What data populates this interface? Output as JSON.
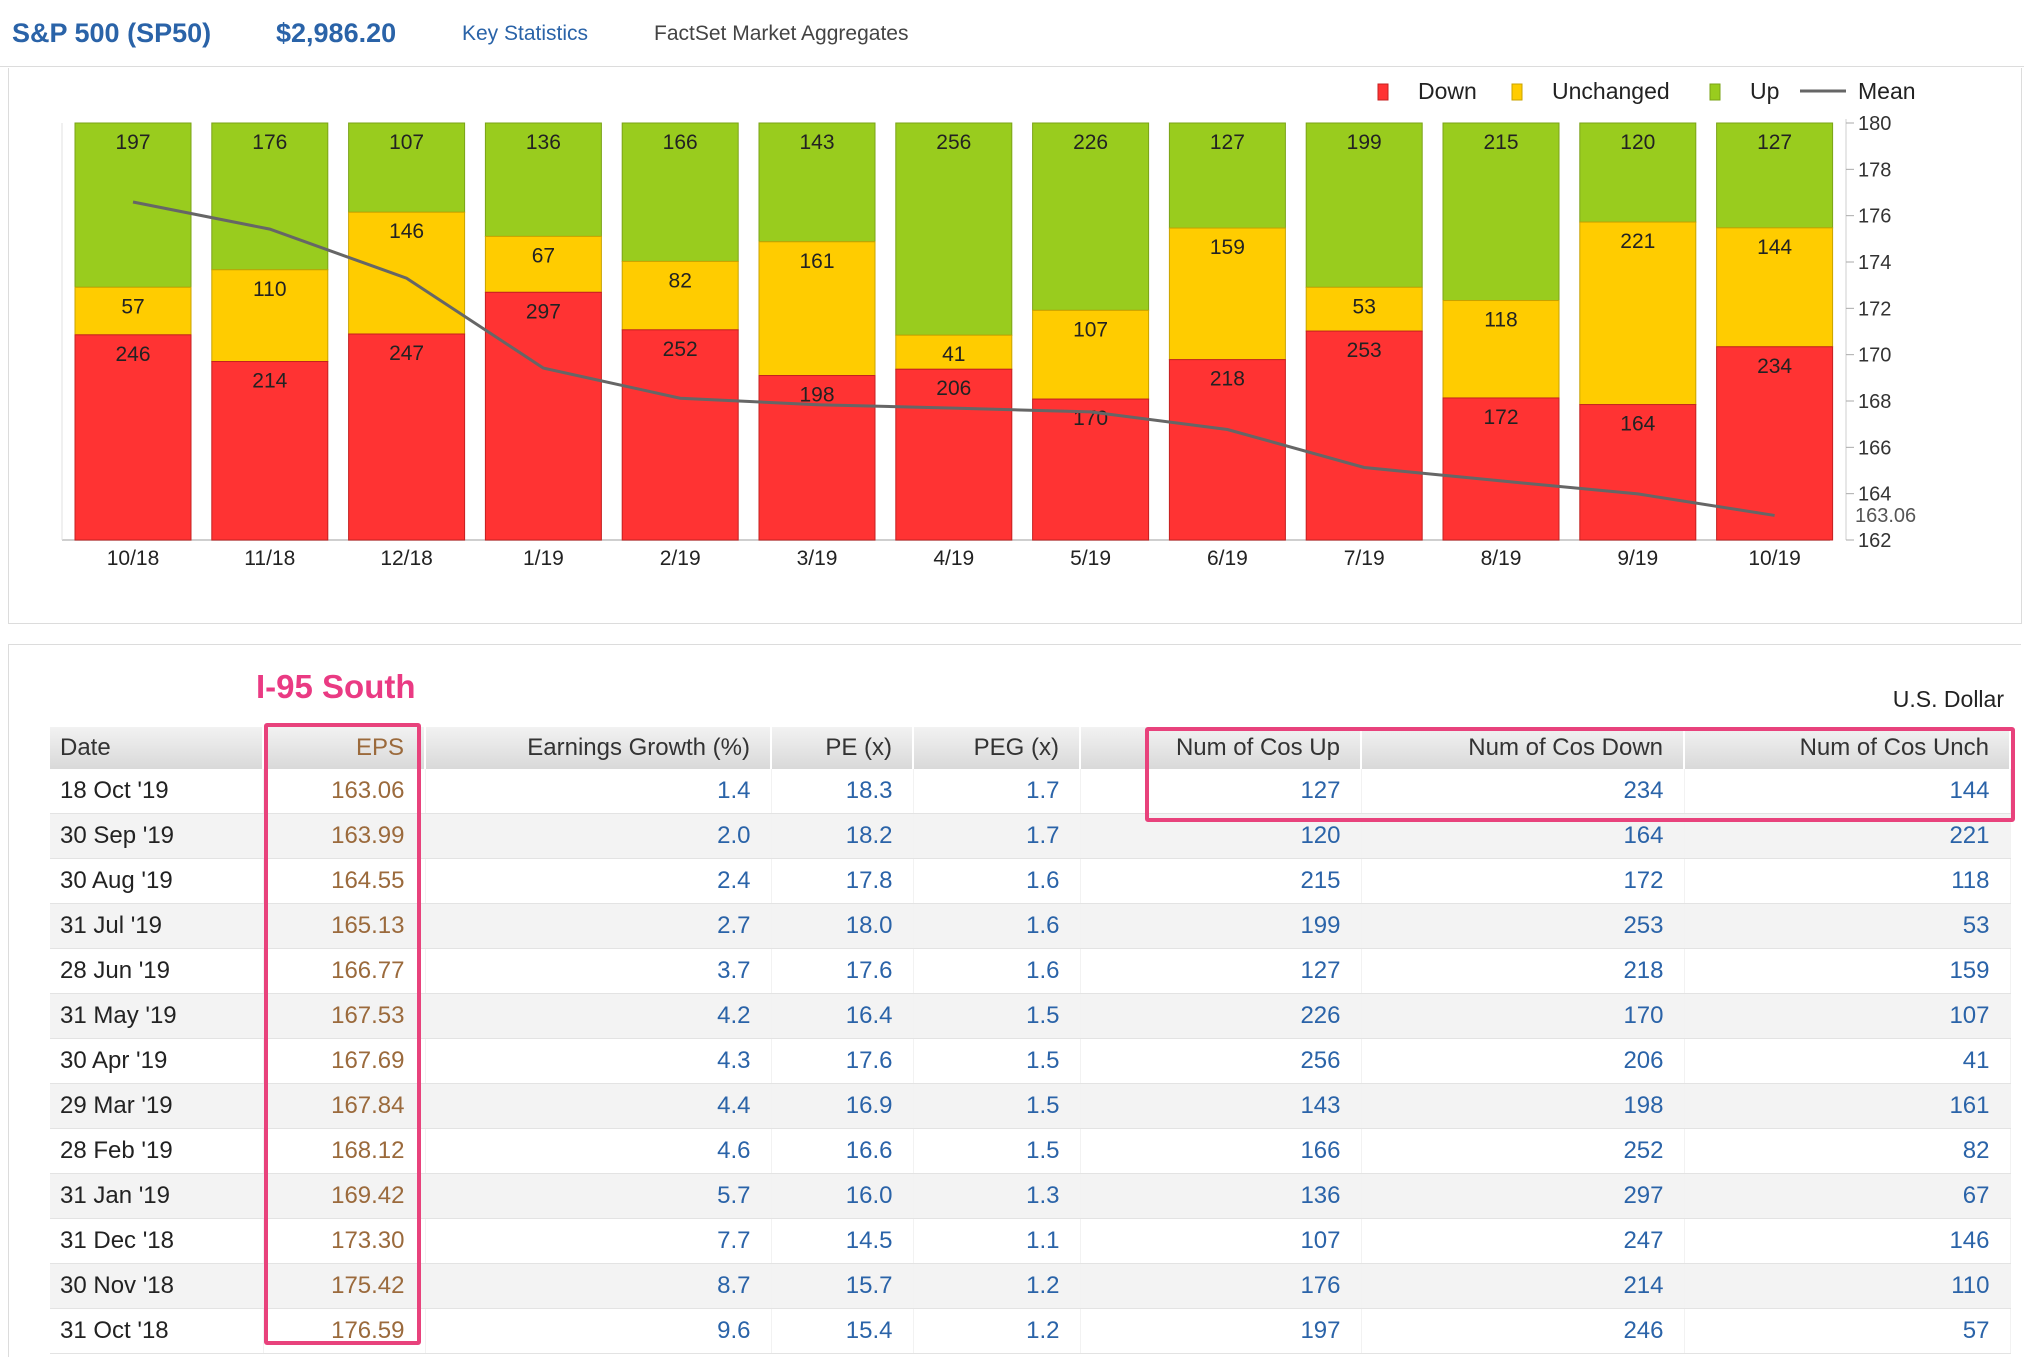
{
  "header": {
    "ticker": "S&P 500 (SP50)",
    "price": "$2,986.20",
    "key_stats": "Key Statistics",
    "factset": "FactSet Market Aggregates"
  },
  "annotation": "I-95 South",
  "currency": "U.S. Dollar",
  "colors": {
    "down": "#ff3333",
    "unchanged": "#ffcc00",
    "up": "#99cc1e",
    "mean": "#666666",
    "annotation": "#e8427c"
  },
  "chart_data": {
    "type": "bar",
    "stacked": true,
    "categories": [
      "10/18",
      "11/18",
      "12/18",
      "1/19",
      "2/19",
      "3/19",
      "4/19",
      "5/19",
      "6/19",
      "7/19",
      "8/19",
      "9/19",
      "10/19"
    ],
    "series": [
      {
        "name": "Down",
        "values": [
          246,
          214,
          247,
          297,
          252,
          198,
          206,
          170,
          218,
          253,
          172,
          164,
          234
        ]
      },
      {
        "name": "Unchanged",
        "values": [
          57,
          110,
          146,
          67,
          82,
          161,
          41,
          107,
          159,
          53,
          118,
          221,
          144
        ]
      },
      {
        "name": "Up",
        "values": [
          197,
          176,
          107,
          136,
          166,
          143,
          256,
          226,
          127,
          199,
          215,
          120,
          127
        ]
      }
    ],
    "mean": {
      "name": "Mean",
      "values": [
        176.59,
        175.42,
        173.3,
        169.42,
        168.12,
        167.84,
        167.69,
        167.53,
        166.77,
        165.13,
        164.55,
        163.99,
        163.06
      ]
    },
    "mean_last_label": "163.06",
    "y2_ticks": [
      "180",
      "178",
      "176",
      "174",
      "172",
      "170",
      "168",
      "166",
      "164",
      "162"
    ],
    "y2lim": [
      162,
      180
    ],
    "legend": "top-right",
    "grid": false
  },
  "table": {
    "columns": [
      "Date",
      "EPS",
      "Earnings Growth (%)",
      "PE (x)",
      "PEG (x)",
      "Num of Cos Up",
      "Num of Cos Down",
      "Num of Cos Unch"
    ],
    "rows": [
      [
        "18 Oct '19",
        "163.06",
        "1.4",
        "18.3",
        "1.7",
        "127",
        "234",
        "144"
      ],
      [
        "30 Sep '19",
        "163.99",
        "2.0",
        "18.2",
        "1.7",
        "120",
        "164",
        "221"
      ],
      [
        "30 Aug '19",
        "164.55",
        "2.4",
        "17.8",
        "1.6",
        "215",
        "172",
        "118"
      ],
      [
        "31 Jul '19",
        "165.13",
        "2.7",
        "18.0",
        "1.6",
        "199",
        "253",
        "53"
      ],
      [
        "28 Jun '19",
        "166.77",
        "3.7",
        "17.6",
        "1.6",
        "127",
        "218",
        "159"
      ],
      [
        "31 May '19",
        "167.53",
        "4.2",
        "16.4",
        "1.5",
        "226",
        "170",
        "107"
      ],
      [
        "30 Apr '19",
        "167.69",
        "4.3",
        "17.6",
        "1.5",
        "256",
        "206",
        "41"
      ],
      [
        "29 Mar '19",
        "167.84",
        "4.4",
        "16.9",
        "1.5",
        "143",
        "198",
        "161"
      ],
      [
        "28 Feb '19",
        "168.12",
        "4.6",
        "16.6",
        "1.5",
        "166",
        "252",
        "82"
      ],
      [
        "31 Jan '19",
        "169.42",
        "5.7",
        "16.0",
        "1.3",
        "136",
        "297",
        "67"
      ],
      [
        "31 Dec '18",
        "173.30",
        "7.7",
        "14.5",
        "1.1",
        "107",
        "247",
        "146"
      ],
      [
        "30 Nov '18",
        "175.42",
        "8.7",
        "15.7",
        "1.2",
        "176",
        "214",
        "110"
      ],
      [
        "31 Oct '18",
        "176.59",
        "9.6",
        "15.4",
        "1.2",
        "197",
        "246",
        "57"
      ]
    ]
  }
}
